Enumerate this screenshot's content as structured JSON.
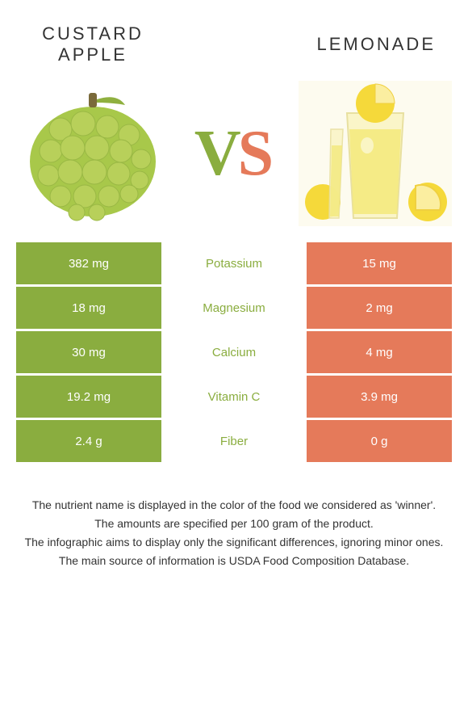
{
  "foods": {
    "left": {
      "title": "CUSTARD APPLE",
      "color": "#8aad3f"
    },
    "right": {
      "title": "Lemonade",
      "color": "#e57a5a"
    }
  },
  "vs": {
    "v": "V",
    "s": "S"
  },
  "colors": {
    "left_bar": "#8aad3f",
    "right_bar": "#e57a5a",
    "mid_bg": "#ffffff",
    "text_white": "#ffffff"
  },
  "nutrients": [
    {
      "name": "Potassium",
      "left": "382 mg",
      "right": "15 mg",
      "winner": "left"
    },
    {
      "name": "Magnesium",
      "left": "18 mg",
      "right": "2 mg",
      "winner": "left"
    },
    {
      "name": "Calcium",
      "left": "30 mg",
      "right": "4 mg",
      "winner": "left"
    },
    {
      "name": "Vitamin C",
      "left": "19.2 mg",
      "right": "3.9 mg",
      "winner": "left"
    },
    {
      "name": "Fiber",
      "left": "2.4 g",
      "right": "0 g",
      "winner": "left"
    }
  ],
  "footer": [
    "The nutrient name is displayed in the color of the food we considered as 'winner'.",
    "The amounts are specified per 100 gram of the product.",
    "The infographic aims to display only the significant differences, ignoring minor ones.",
    "The main source of information is USDA Food Composition Database."
  ]
}
